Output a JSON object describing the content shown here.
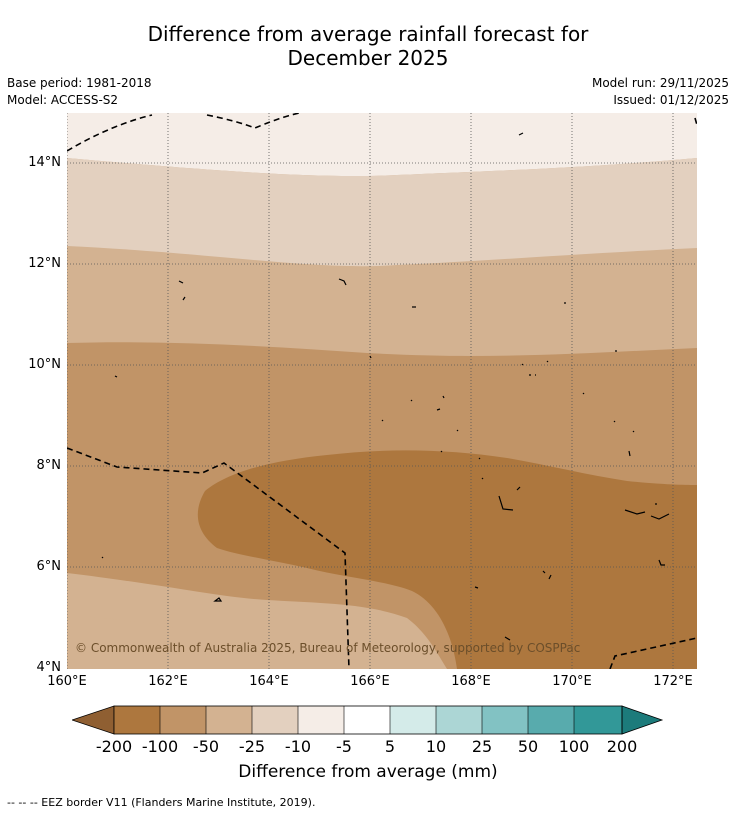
{
  "title": {
    "line1": "Difference from average rainfall forecast for",
    "line2": "December 2025"
  },
  "meta": {
    "base_period": "Base period: 1981-2018",
    "model": "Model: ACCESS-S2",
    "model_run": "Model run: 29/11/2025",
    "issued": "Issued: 01/12/2025"
  },
  "map": {
    "lat_labels": [
      "14°N",
      "12°N",
      "10°N",
      "8°N",
      "6°N",
      "4°N"
    ],
    "lon_labels": [
      "160°E",
      "162°E",
      "164°E",
      "166°E",
      "168°E",
      "170°E",
      "172°E"
    ],
    "copyright": "© Commonwealth of Australia 2025, Bureau of Meteorology, supported by COSPPac"
  },
  "colorbar": {
    "labels": [
      "-200",
      "-100",
      "-50",
      "-25",
      "-10",
      "-5",
      "5",
      "10",
      "25",
      "50",
      "100",
      "200"
    ],
    "colors": [
      "#8f5f32",
      "#ad773e",
      "#c19467",
      "#d3b291",
      "#e3d0bf",
      "#f5ede7",
      "#ffffff",
      "#d4ebe9",
      "#acd6d5",
      "#82c2c3",
      "#58abad",
      "#329898",
      "#1c7b7b"
    ],
    "title": "Difference from average (mm)"
  },
  "footnote": "--  --  -- EEZ border V11 (Flanders Marine Institute, 2019)."
}
